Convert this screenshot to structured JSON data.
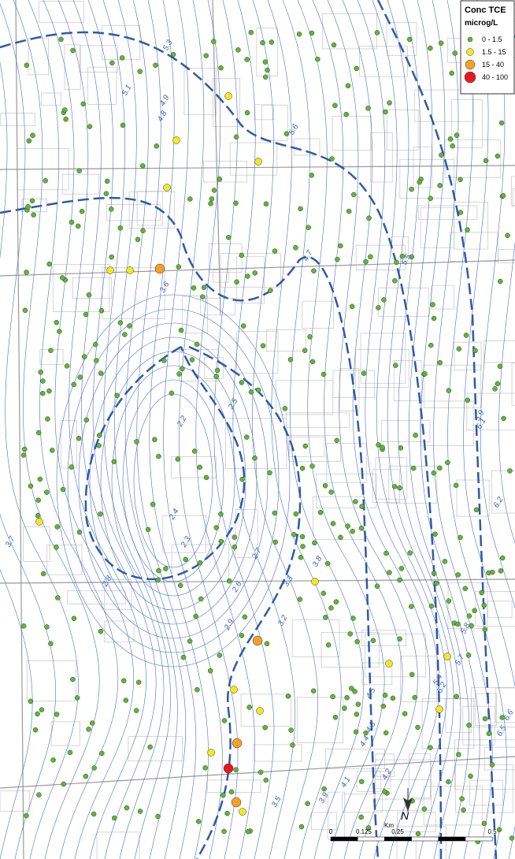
{
  "legend": {
    "title": "Conc TCE",
    "unit": "microg/L",
    "classes": [
      {
        "label": "0 - 1.5",
        "color": "#5fb832"
      },
      {
        "label": "1.5 - 15",
        "color": "#f2ea1e"
      },
      {
        "label": "15 - 40",
        "color": "#f5a02a"
      },
      {
        "label": "40 - 100",
        "color": "#e8191e"
      }
    ]
  },
  "contour_labels": [
    5.3,
    5.1,
    4.9,
    4.8,
    5.6,
    6.4,
    4.7,
    5.5,
    3.6,
    5.9,
    6.1,
    6.2,
    2.5,
    2.2,
    2.4,
    2.3,
    2.7,
    3.8,
    2.8,
    3.7,
    2.6,
    2.9,
    3.2,
    3.3,
    5.8,
    5.7,
    5.4,
    5.2,
    4.5,
    4.3,
    4.4,
    4.2,
    3.9,
    3.5,
    4.1,
    6.5,
    6.6
  ],
  "scale_bar": {
    "ticks": [
      "0",
      "0.125",
      "0.25",
      "0.5"
    ],
    "unit": "Km"
  },
  "north": "N"
}
